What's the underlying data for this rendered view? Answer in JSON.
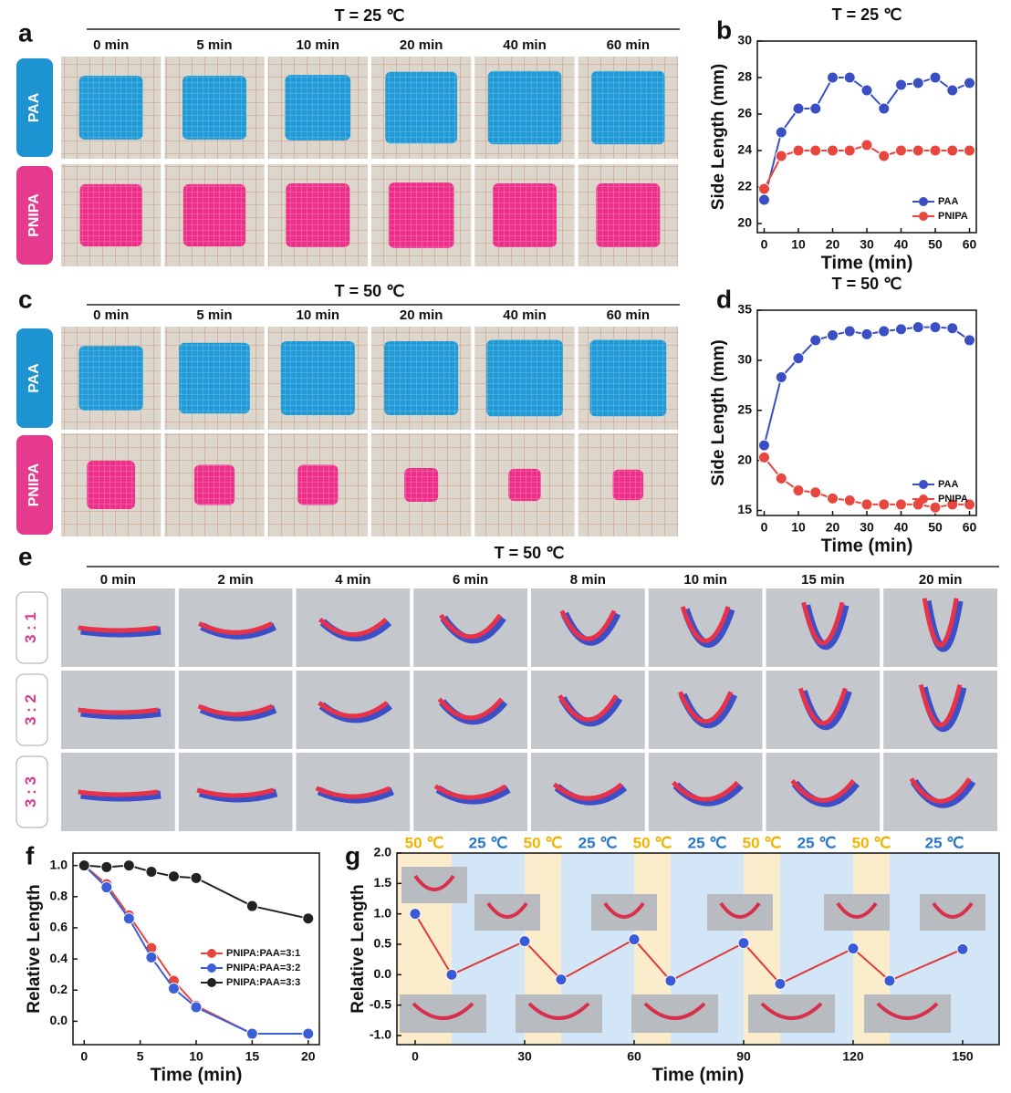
{
  "panels": {
    "a": {
      "label": "a",
      "title": "T = 25 ℃",
      "times": [
        "0 min",
        "5 min",
        "10 min",
        "20 min",
        "40 min",
        "60 min"
      ],
      "rows": [
        "PAA",
        "PNIPA"
      ]
    },
    "c": {
      "label": "c",
      "title": "T = 50 ℃",
      "times": [
        "0 min",
        "5 min",
        "10 min",
        "20 min",
        "40 min",
        "60 min"
      ],
      "rows": [
        "PAA",
        "PNIPA"
      ]
    },
    "e": {
      "label": "e",
      "title": "T = 50 ℃",
      "times": [
        "0 min",
        "2 min",
        "4 min",
        "6 min",
        "8 min",
        "10 min",
        "15 min",
        "20 min"
      ],
      "rows": [
        "3 : 1",
        "3 : 2",
        "3 : 3"
      ]
    }
  },
  "chart_data": [
    {
      "type": "line",
      "panel_label": "b",
      "title": "T = 25 ℃",
      "x_label": "Time (min)",
      "y_label": "Side Length (mm)",
      "x": [
        0,
        5,
        10,
        15,
        20,
        25,
        30,
        35,
        40,
        45,
        50,
        55,
        60
      ],
      "series": [
        {
          "name": "PAA",
          "color": "#3a4fc4",
          "values": [
            21.3,
            25,
            26.3,
            26.3,
            28,
            28,
            27.3,
            26.3,
            27.6,
            27.7,
            28,
            27.3,
            27.7
          ]
        },
        {
          "name": "PNIPA",
          "color": "#e8473f",
          "values": [
            21.9,
            23.7,
            24,
            24,
            24,
            24,
            24.3,
            23.7,
            24,
            24,
            24,
            24,
            24
          ]
        }
      ],
      "xlim": [
        -2,
        62
      ],
      "xticks": [
        0,
        10,
        20,
        30,
        40,
        50,
        60
      ],
      "ylim": [
        19.5,
        30
      ],
      "yticks": [
        20,
        22,
        24,
        26,
        28,
        30
      ],
      "legend": "lower right"
    },
    {
      "type": "line",
      "panel_label": "d",
      "title": "T = 50 ℃",
      "x_label": "Time (min)",
      "y_label": "Side Length (mm)",
      "x": [
        0,
        5,
        10,
        15,
        20,
        25,
        30,
        35,
        40,
        45,
        50,
        55,
        60
      ],
      "series": [
        {
          "name": "PAA",
          "color": "#3a4fc4",
          "values": [
            21.5,
            28.3,
            30.2,
            32,
            32.5,
            32.9,
            32.6,
            32.9,
            33.1,
            33.3,
            33.3,
            33.2,
            32
          ]
        },
        {
          "name": "PNIPA",
          "color": "#e8473f",
          "values": [
            20.3,
            18.2,
            17,
            16.8,
            16.2,
            16,
            15.6,
            15.6,
            15.6,
            15.6,
            15.3,
            15.6,
            15.6
          ]
        }
      ],
      "xlim": [
        -2,
        62
      ],
      "xticks": [
        0,
        10,
        20,
        30,
        40,
        50,
        60
      ],
      "ylim": [
        14.5,
        35
      ],
      "yticks": [
        15,
        20,
        25,
        30,
        35
      ],
      "legend": "lower right"
    },
    {
      "type": "line",
      "panel_label": "f",
      "x_label": "Time (min)",
      "y_label": "Relative Length",
      "x": [
        0,
        2,
        4,
        6,
        8,
        10,
        15,
        20
      ],
      "series": [
        {
          "name": "PNIPA:PAA=3:1",
          "color": "#e8473f",
          "values": [
            1,
            0.88,
            0.68,
            0.47,
            0.26,
            0.1,
            -0.08,
            -0.08
          ]
        },
        {
          "name": "PNIPA:PAA=3:2",
          "color": "#3a5fd6",
          "values": [
            1,
            0.86,
            0.66,
            0.41,
            0.21,
            0.09,
            -0.08,
            -0.08
          ]
        },
        {
          "name": "PNIPA:PAA=3:3",
          "color": "#222222",
          "values": [
            1,
            0.99,
            1,
            0.96,
            0.93,
            0.92,
            0.74,
            0.66
          ]
        }
      ],
      "xlim": [
        -1,
        21
      ],
      "xticks": [
        0,
        5,
        10,
        15,
        20
      ],
      "ylim": [
        -0.15,
        1.08
      ],
      "yticks": [
        {
          "value": 0,
          "label": "0.0"
        },
        0.2,
        0.4,
        0.6,
        0.8,
        {
          "value": 1,
          "label": "1.0"
        }
      ],
      "legend": "lower right"
    },
    {
      "type": "line",
      "panel_label": "g",
      "x_label": "Time (min)",
      "y_label": "Relative Length",
      "x": [
        0,
        10,
        30,
        40,
        60,
        70,
        90,
        100,
        120,
        130,
        150
      ],
      "values": [
        1.0,
        0.0,
        0.55,
        -0.08,
        0.58,
        -0.1,
        0.52,
        -0.15,
        0.43,
        -0.1,
        0.42
      ],
      "marker_color": "#3b5bd6",
      "line_color": "#e03a3a",
      "phases": [
        {
          "label": "50 ℃",
          "from": -5,
          "to": 10,
          "color": "#fbeccb",
          "text_color": "#f2b300"
        },
        {
          "label": "25 ℃",
          "from": 10,
          "to": 30,
          "color": "#d3e6f7",
          "text_color": "#2a78c8"
        },
        {
          "label": "50 ℃",
          "from": 30,
          "to": 40,
          "color": "#fbeccb",
          "text_color": "#f2b300"
        },
        {
          "label": "25 ℃",
          "from": 40,
          "to": 60,
          "color": "#d3e6f7",
          "text_color": "#2a78c8"
        },
        {
          "label": "50 ℃",
          "from": 60,
          "to": 70,
          "color": "#fbeccb",
          "text_color": "#f2b300"
        },
        {
          "label": "25 ℃",
          "from": 70,
          "to": 90,
          "color": "#d3e6f7",
          "text_color": "#2a78c8"
        },
        {
          "label": "50 ℃",
          "from": 90,
          "to": 100,
          "color": "#fbeccb",
          "text_color": "#f2b300"
        },
        {
          "label": "25 ℃",
          "from": 100,
          "to": 120,
          "color": "#d3e6f7",
          "text_color": "#2a78c8"
        },
        {
          "label": "50 ℃",
          "from": 120,
          "to": 130,
          "color": "#fbeccb",
          "text_color": "#f2b300"
        },
        {
          "label": "25 ℃",
          "from": 130,
          "to": 160,
          "color": "#d3e6f7",
          "text_color": "#2a78c8"
        }
      ],
      "xlim": [
        -5,
        160
      ],
      "xticks": [
        0,
        30,
        60,
        90,
        120,
        150
      ],
      "ylim": [
        -1.15,
        2.0
      ],
      "yticks": [
        {
          "value": -1,
          "label": "-1.0"
        },
        -0.5,
        {
          "value": 0,
          "label": "0.0"
        },
        0.5,
        {
          "value": 1,
          "label": "1.0"
        },
        1.5,
        {
          "value": 2,
          "label": "2.0"
        }
      ]
    }
  ]
}
